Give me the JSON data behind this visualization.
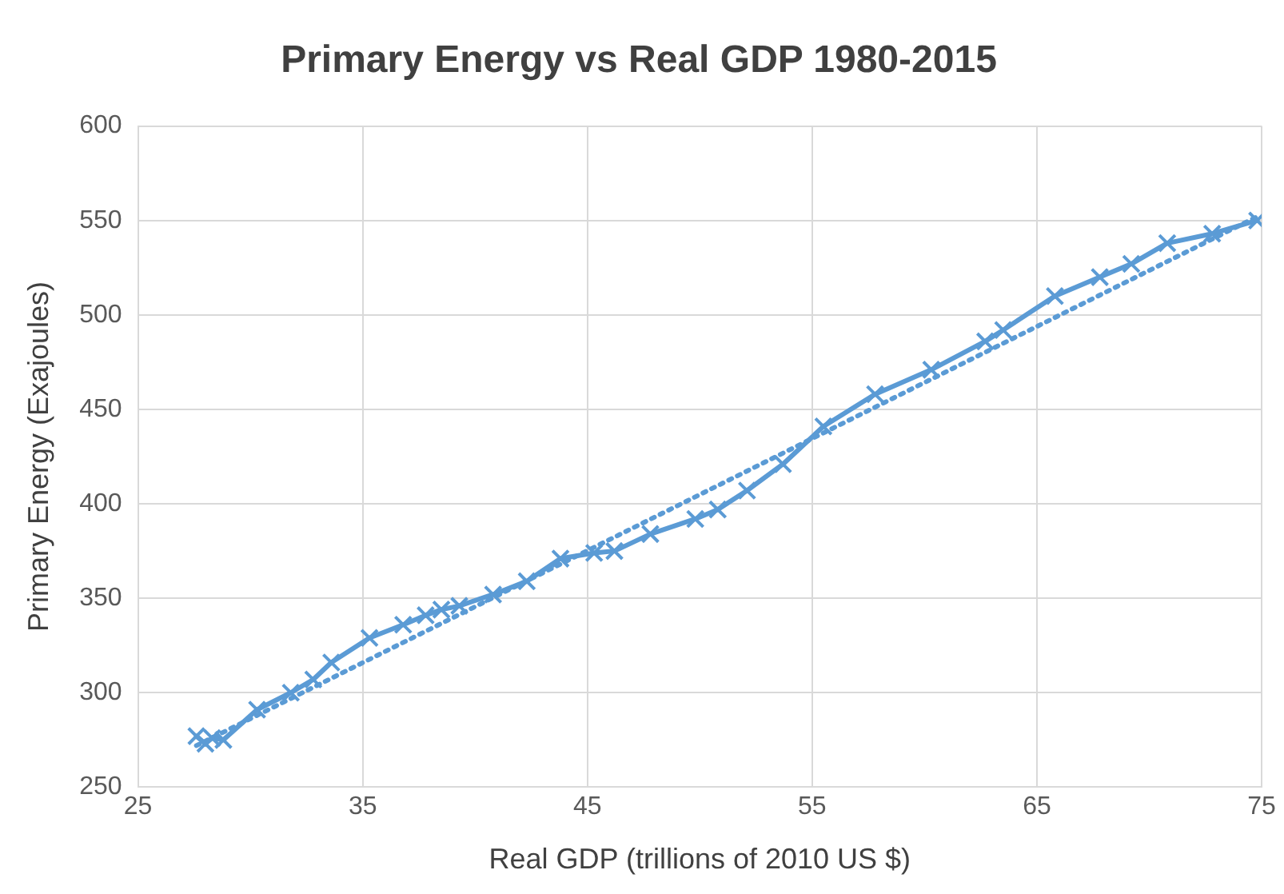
{
  "chart_data": {
    "type": "line",
    "title": "Primary Energy vs Real GDP 1980-2015",
    "xlabel": "Real GDP (trillions of 2010 US $)",
    "ylabel": "Primary Energy (Exajoules)",
    "xlim": [
      25,
      75
    ],
    "xticks": [
      25,
      35,
      45,
      55,
      65,
      75
    ],
    "ylim": [
      250,
      600
    ],
    "yticks": [
      250,
      300,
      350,
      400,
      450,
      500,
      550,
      600
    ],
    "grid": true,
    "legend": false,
    "series": [
      {
        "color": "#5b9bd5",
        "marker": "cross",
        "line_style": "solid",
        "x": [
          27.6,
          28.0,
          28.3,
          28.8,
          30.3,
          31.8,
          32.8,
          33.6,
          35.3,
          36.8,
          37.8,
          38.5,
          39.3,
          40.8,
          42.3,
          43.8,
          45.3,
          46.2,
          47.8,
          49.8,
          50.8,
          52.1,
          53.7,
          55.5,
          57.8,
          60.3,
          62.7,
          63.5,
          65.8,
          67.8,
          69.2,
          70.8,
          72.8,
          74.8
        ],
        "values": [
          277,
          273,
          276,
          275,
          291,
          300,
          307,
          316,
          329,
          336,
          341,
          344,
          346,
          352,
          359,
          371,
          374,
          375,
          384,
          392,
          397,
          407,
          421,
          441,
          458,
          471,
          486,
          492,
          510,
          520,
          527,
          538,
          543,
          550
        ]
      },
      {
        "type": "line",
        "color": "#5b9bd5",
        "marker": "none",
        "line_style": "dotted",
        "x": [
          27.6,
          74.8
        ],
        "values": [
          272,
          552
        ]
      }
    ]
  }
}
